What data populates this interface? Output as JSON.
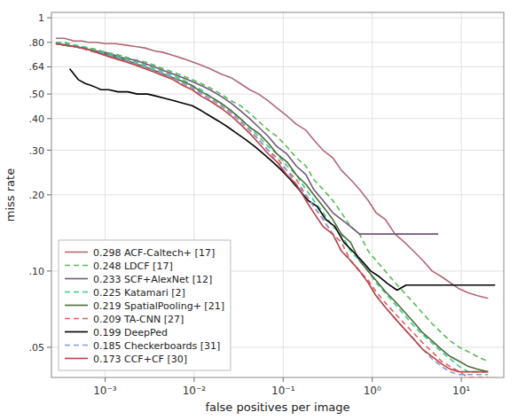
{
  "chart_data": {
    "type": "line",
    "xlabel": "false positives per image",
    "ylabel": "miss rate",
    "log": true,
    "grid": true,
    "legend": "lower left",
    "xlim": [
      0.00025,
      30
    ],
    "ylim": [
      0.038,
      1.05
    ],
    "xticks": [
      {
        "value": 0.001,
        "label": "10⁻³"
      },
      {
        "value": 0.01,
        "label": "10⁻²"
      },
      {
        "value": 0.1,
        "label": "10⁻¹"
      },
      {
        "value": 1,
        "label": "10⁰"
      },
      {
        "value": 10,
        "label": "10¹"
      }
    ],
    "yticks": [
      {
        "value": 0.05,
        "label": ".05"
      },
      {
        "value": 0.1,
        "label": ".10"
      },
      {
        "value": 0.2,
        "label": ".20"
      },
      {
        "value": 0.3,
        "label": ".30"
      },
      {
        "value": 0.4,
        "label": ".40"
      },
      {
        "value": 0.5,
        "label": ".50"
      },
      {
        "value": 0.64,
        "label": ".64"
      },
      {
        "value": 0.8,
        "label": ".80"
      },
      1
    ],
    "series": [
      {
        "name": "0.298 ACF-Caltech+ [17]",
        "color": "#b06878",
        "line_style": "solid",
        "x": [
          0.00028,
          0.00035,
          0.00045,
          0.00055,
          0.00065,
          0.0008,
          0.001,
          0.0013,
          0.0017,
          0.0022,
          0.0028,
          0.0036,
          0.0045,
          0.0058,
          0.0075,
          0.0095,
          0.012,
          0.015,
          0.02,
          0.026,
          0.033,
          0.042,
          0.053,
          0.068,
          0.085,
          0.11,
          0.14,
          0.18,
          0.22,
          0.28,
          0.36,
          0.45,
          0.57,
          0.72,
          0.9,
          1.1,
          1.4,
          1.8,
          2.3,
          2.9,
          3.7,
          4.7,
          6.0,
          7.5,
          9.5,
          12,
          15,
          20
        ],
        "values": [
          0.83,
          0.83,
          0.81,
          0.81,
          0.8,
          0.8,
          0.79,
          0.79,
          0.78,
          0.77,
          0.76,
          0.74,
          0.73,
          0.71,
          0.69,
          0.67,
          0.65,
          0.63,
          0.6,
          0.58,
          0.55,
          0.52,
          0.5,
          0.47,
          0.44,
          0.41,
          0.38,
          0.36,
          0.33,
          0.3,
          0.28,
          0.25,
          0.23,
          0.21,
          0.19,
          0.17,
          0.16,
          0.14,
          0.13,
          0.12,
          0.11,
          0.1,
          0.095,
          0.09,
          0.085,
          0.082,
          0.08,
          0.078
        ]
      },
      {
        "name": "0.248 LDCF [17]",
        "color": "#55bb55",
        "line_style": "dashed",
        "x": [
          0.00028,
          0.00035,
          0.00045,
          0.00055,
          0.00065,
          0.0008,
          0.001,
          0.0013,
          0.0017,
          0.0022,
          0.0028,
          0.0036,
          0.0045,
          0.0058,
          0.0075,
          0.0095,
          0.012,
          0.015,
          0.02,
          0.026,
          0.033,
          0.042,
          0.053,
          0.068,
          0.085,
          0.11,
          0.14,
          0.18,
          0.22,
          0.28,
          0.36,
          0.45,
          0.57,
          0.72,
          0.9,
          1.1,
          1.4,
          1.8,
          2.3,
          2.9,
          3.7,
          4.7,
          6.0,
          7.5,
          9.5,
          12,
          15,
          20
        ],
        "values": [
          0.8,
          0.8,
          0.78,
          0.77,
          0.76,
          0.75,
          0.73,
          0.72,
          0.7,
          0.68,
          0.67,
          0.65,
          0.63,
          0.61,
          0.59,
          0.57,
          0.55,
          0.53,
          0.5,
          0.47,
          0.45,
          0.42,
          0.39,
          0.36,
          0.34,
          0.31,
          0.28,
          0.26,
          0.23,
          0.21,
          0.19,
          0.17,
          0.15,
          0.14,
          0.12,
          0.11,
          0.1,
          0.09,
          0.082,
          0.075,
          0.068,
          0.062,
          0.057,
          0.053,
          0.05,
          0.048,
          0.046,
          0.044
        ]
      },
      {
        "name": "0.233 SCF+AlexNet [12]",
        "color": "#705878",
        "line_style": "solid",
        "x": [
          0.00028,
          0.00035,
          0.00045,
          0.00055,
          0.00065,
          0.0008,
          0.001,
          0.0013,
          0.0017,
          0.0022,
          0.0028,
          0.0036,
          0.0045,
          0.0058,
          0.0075,
          0.0095,
          0.012,
          0.015,
          0.02,
          0.026,
          0.033,
          0.042,
          0.053,
          0.068,
          0.085,
          0.11,
          0.14,
          0.18,
          0.22,
          0.28,
          0.36,
          0.45,
          0.57,
          0.72,
          0.9,
          1.1,
          1.4,
          1.8,
          2.3,
          2.9,
          3.7,
          4.7,
          5.5
        ],
        "values": [
          0.79,
          0.78,
          0.77,
          0.76,
          0.75,
          0.74,
          0.73,
          0.71,
          0.69,
          0.68,
          0.66,
          0.64,
          0.62,
          0.6,
          0.58,
          0.56,
          0.54,
          0.52,
          0.49,
          0.46,
          0.43,
          0.4,
          0.37,
          0.34,
          0.31,
          0.29,
          0.26,
          0.24,
          0.21,
          0.19,
          0.17,
          0.16,
          0.15,
          0.14,
          0.14,
          0.14,
          0.14,
          0.14,
          0.14,
          0.14,
          0.14,
          0.14,
          0.14
        ]
      },
      {
        "name": "0.225 Katamari [2]",
        "color": "#33cc88",
        "line_style": "dashed",
        "x": [
          0.00028,
          0.00035,
          0.00045,
          0.00055,
          0.00065,
          0.0008,
          0.001,
          0.0013,
          0.0017,
          0.0022,
          0.0028,
          0.0036,
          0.0045,
          0.0058,
          0.0075,
          0.0095,
          0.012,
          0.015,
          0.02,
          0.026,
          0.033,
          0.042,
          0.053,
          0.068,
          0.085,
          0.11,
          0.14,
          0.18,
          0.22,
          0.28,
          0.36,
          0.45,
          0.57,
          0.72,
          0.9,
          1.1,
          1.4,
          1.8,
          2.3,
          2.9,
          3.7,
          4.7,
          6.0,
          7.5,
          9.5,
          12,
          15,
          20
        ],
        "values": [
          0.8,
          0.79,
          0.78,
          0.77,
          0.76,
          0.74,
          0.73,
          0.71,
          0.69,
          0.67,
          0.65,
          0.63,
          0.61,
          0.59,
          0.57,
          0.54,
          0.52,
          0.49,
          0.46,
          0.43,
          0.4,
          0.37,
          0.34,
          0.31,
          0.29,
          0.26,
          0.24,
          0.21,
          0.19,
          0.17,
          0.15,
          0.14,
          0.12,
          0.11,
          0.1,
          0.09,
          0.082,
          0.074,
          0.067,
          0.061,
          0.056,
          0.052,
          0.048,
          0.045,
          0.042,
          0.04,
          0.04,
          0.04
        ]
      },
      {
        "name": "0.219 SpatialPooling+ [21]",
        "color": "#4d6b3a",
        "line_style": "solid",
        "x": [
          0.00028,
          0.00035,
          0.00045,
          0.00055,
          0.00065,
          0.0008,
          0.001,
          0.0013,
          0.0017,
          0.0022,
          0.0028,
          0.0036,
          0.0045,
          0.0058,
          0.0075,
          0.0095,
          0.012,
          0.015,
          0.02,
          0.026,
          0.033,
          0.042,
          0.053,
          0.068,
          0.085,
          0.11,
          0.14,
          0.18,
          0.22,
          0.28,
          0.36,
          0.45,
          0.57,
          0.72,
          0.9,
          1.1,
          1.4,
          1.8,
          2.3,
          2.9,
          3.7,
          4.7,
          6.0,
          7.5,
          9.5,
          12,
          15,
          20
        ],
        "values": [
          0.79,
          0.78,
          0.77,
          0.76,
          0.75,
          0.73,
          0.72,
          0.7,
          0.68,
          0.66,
          0.64,
          0.62,
          0.6,
          0.58,
          0.56,
          0.54,
          0.51,
          0.49,
          0.46,
          0.43,
          0.4,
          0.37,
          0.35,
          0.32,
          0.29,
          0.27,
          0.24,
          0.22,
          0.2,
          0.18,
          0.16,
          0.14,
          0.13,
          0.11,
          0.1,
          0.092,
          0.083,
          0.076,
          0.069,
          0.063,
          0.057,
          0.053,
          0.049,
          0.046,
          0.044,
          0.042,
          0.041,
          0.04
        ]
      },
      {
        "name": "0.209 TA-CNN [27]",
        "color": "#e06060",
        "line_style": "dashed",
        "x": [
          0.00028,
          0.00035,
          0.00045,
          0.00055,
          0.00065,
          0.0008,
          0.001,
          0.0013,
          0.0017,
          0.0022,
          0.0028,
          0.0036,
          0.0045,
          0.0058,
          0.0075,
          0.0095,
          0.012,
          0.015,
          0.02,
          0.026,
          0.033,
          0.042,
          0.053,
          0.068,
          0.085,
          0.11,
          0.14,
          0.18,
          0.22,
          0.28,
          0.36,
          0.45,
          0.57,
          0.72,
          0.9,
          1.1,
          1.4,
          1.8,
          2.3,
          2.9,
          3.7,
          4.7,
          6.0,
          7.5,
          9.5,
          12,
          15,
          20
        ],
        "values": [
          0.79,
          0.78,
          0.77,
          0.76,
          0.74,
          0.73,
          0.71,
          0.69,
          0.68,
          0.66,
          0.64,
          0.62,
          0.6,
          0.58,
          0.55,
          0.53,
          0.5,
          0.48,
          0.45,
          0.42,
          0.39,
          0.36,
          0.33,
          0.3,
          0.28,
          0.25,
          0.23,
          0.2,
          0.18,
          0.16,
          0.14,
          0.13,
          0.11,
          0.1,
          0.092,
          0.083,
          0.075,
          0.068,
          0.062,
          0.057,
          0.052,
          0.048,
          0.044,
          0.042,
          0.04,
          0.038,
          0.038,
          0.038
        ]
      },
      {
        "name": "0.199 DeepPed",
        "color": "#000000",
        "line_style": "solid",
        "x": [
          0.0004,
          0.0005,
          0.0006,
          0.0007,
          0.0008,
          0.0009,
          0.0011,
          0.0014,
          0.0018,
          0.0023,
          0.003,
          0.0038,
          0.0048,
          0.006,
          0.0075,
          0.0095,
          0.012,
          0.015,
          0.019,
          0.024,
          0.03,
          0.038,
          0.048,
          0.06,
          0.076,
          0.096,
          0.12,
          0.15,
          0.19,
          0.24,
          0.3,
          0.38,
          0.48,
          0.6,
          0.76,
          0.96,
          1.2,
          1.5,
          1.9,
          2.4,
          3.0,
          3.8,
          4.8,
          6.0,
          7.6,
          9.6,
          12,
          15,
          19,
          24
        ],
        "values": [
          0.63,
          0.57,
          0.55,
          0.54,
          0.53,
          0.52,
          0.52,
          0.51,
          0.51,
          0.5,
          0.5,
          0.49,
          0.48,
          0.47,
          0.46,
          0.45,
          0.43,
          0.41,
          0.39,
          0.37,
          0.35,
          0.33,
          0.31,
          0.29,
          0.27,
          0.25,
          0.23,
          0.21,
          0.19,
          0.18,
          0.16,
          0.15,
          0.13,
          0.12,
          0.11,
          0.1,
          0.095,
          0.089,
          0.084,
          0.088,
          0.088,
          0.088,
          0.088,
          0.088,
          0.088,
          0.088,
          0.088,
          0.088,
          0.088,
          0.088
        ]
      },
      {
        "name": "0.185 Checkerboards [31]",
        "color": "#8899dd",
        "line_style": "dashed",
        "x": [
          0.00028,
          0.00035,
          0.00045,
          0.00055,
          0.00065,
          0.0008,
          0.001,
          0.0013,
          0.0017,
          0.0022,
          0.0028,
          0.0036,
          0.0045,
          0.0058,
          0.0075,
          0.0095,
          0.012,
          0.015,
          0.02,
          0.026,
          0.033,
          0.042,
          0.053,
          0.068,
          0.085,
          0.11,
          0.14,
          0.18,
          0.22,
          0.28,
          0.36,
          0.45,
          0.57,
          0.72,
          0.9,
          1.1,
          1.4,
          1.8,
          2.3,
          2.9,
          3.7,
          4.7,
          6.0,
          7.5,
          9.5,
          12,
          15,
          20
        ],
        "values": [
          0.79,
          0.78,
          0.77,
          0.76,
          0.75,
          0.73,
          0.72,
          0.7,
          0.68,
          0.66,
          0.64,
          0.62,
          0.6,
          0.58,
          0.55,
          0.53,
          0.5,
          0.48,
          0.45,
          0.42,
          0.39,
          0.36,
          0.33,
          0.3,
          0.27,
          0.25,
          0.22,
          0.2,
          0.18,
          0.16,
          0.14,
          0.12,
          0.11,
          0.1,
          0.09,
          0.08,
          0.072,
          0.065,
          0.059,
          0.054,
          0.049,
          0.045,
          0.042,
          0.04,
          0.039,
          0.039,
          0.039,
          0.039
        ]
      },
      {
        "name": "0.173 CCF+CF [30]",
        "color": "#bb4444",
        "line_style": "solid",
        "x": [
          0.00028,
          0.00035,
          0.00045,
          0.00055,
          0.00065,
          0.0008,
          0.001,
          0.0013,
          0.0017,
          0.0022,
          0.0028,
          0.0036,
          0.0045,
          0.0058,
          0.0075,
          0.0095,
          0.012,
          0.015,
          0.02,
          0.026,
          0.033,
          0.042,
          0.053,
          0.068,
          0.085,
          0.11,
          0.14,
          0.18,
          0.22,
          0.28,
          0.36,
          0.45,
          0.57,
          0.72,
          0.9,
          1.1,
          1.4,
          1.8,
          2.3,
          2.9,
          3.7,
          4.7,
          6.0,
          7.5,
          9.5,
          12,
          15,
          20
        ],
        "values": [
          0.79,
          0.78,
          0.77,
          0.76,
          0.75,
          0.73,
          0.71,
          0.69,
          0.67,
          0.65,
          0.63,
          0.61,
          0.59,
          0.57,
          0.54,
          0.52,
          0.49,
          0.47,
          0.44,
          0.41,
          0.38,
          0.35,
          0.32,
          0.29,
          0.27,
          0.24,
          0.22,
          0.19,
          0.17,
          0.15,
          0.14,
          0.12,
          0.11,
          0.1,
          0.09,
          0.08,
          0.072,
          0.065,
          0.059,
          0.054,
          0.049,
          0.046,
          0.043,
          0.041,
          0.04,
          0.04,
          0.04,
          0.04
        ]
      }
    ]
  }
}
